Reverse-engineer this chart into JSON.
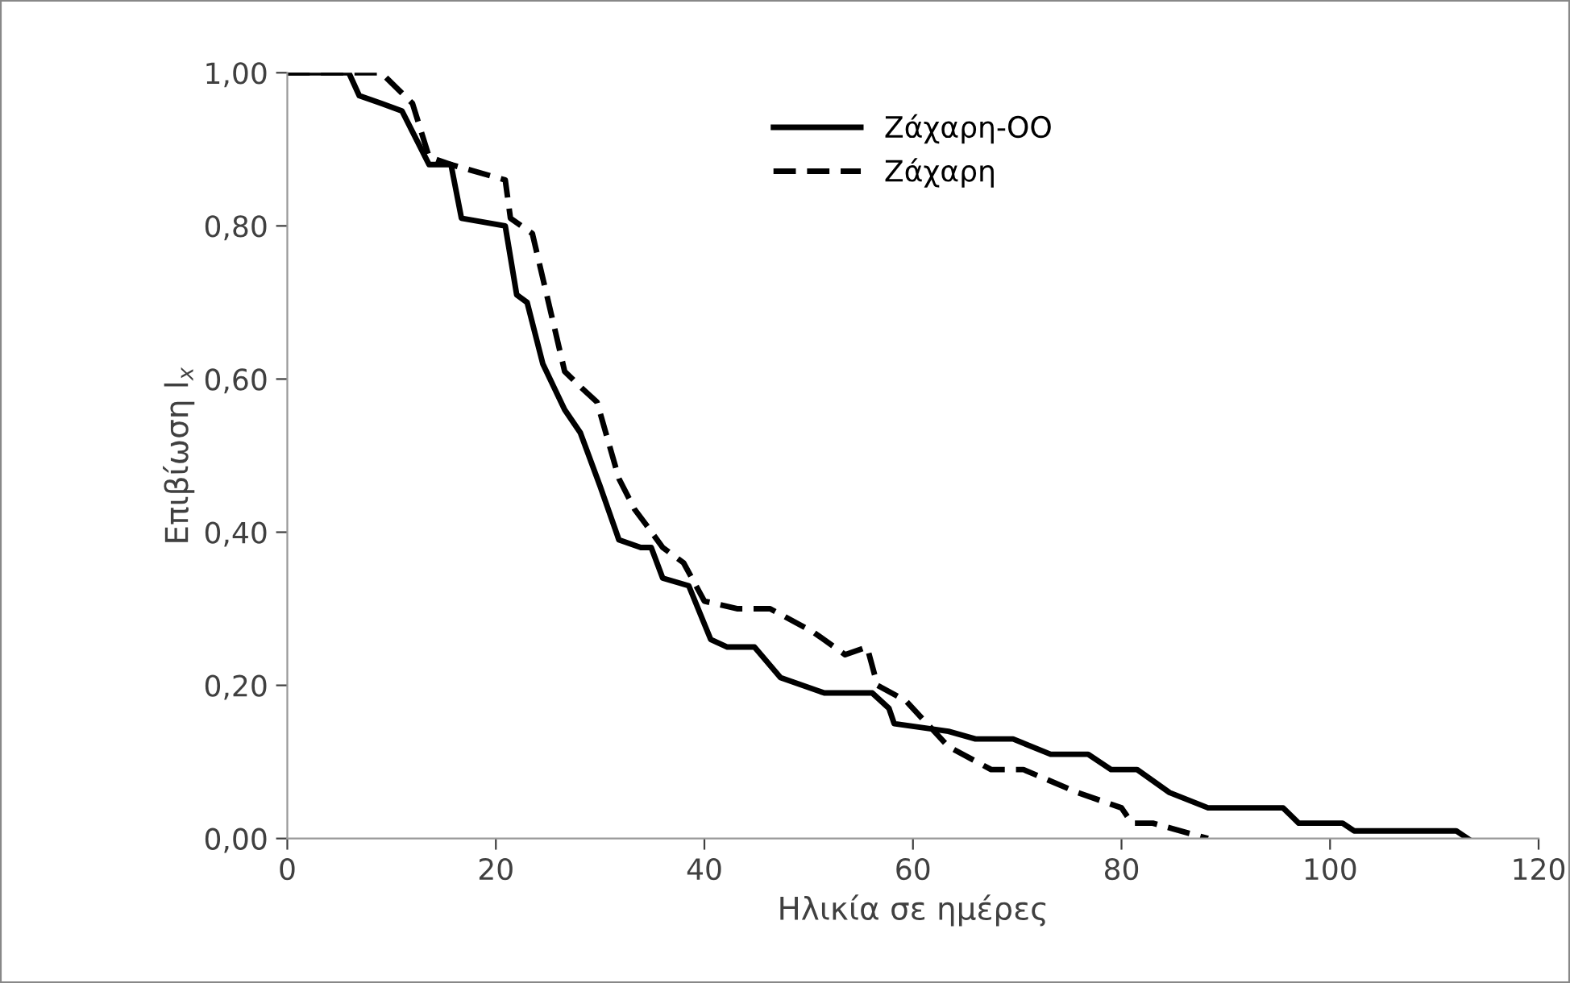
{
  "chart_data": {
    "type": "line",
    "xlabel": "Ηλικία σε ημέρες",
    "ylabel": "Επιβίωση l$_{x}$",
    "xlim": [
      0,
      120
    ],
    "xticks": [
      0,
      20,
      40,
      60,
      80,
      100,
      120
    ],
    "ylim": [
      0,
      1
    ],
    "yticks": [
      {
        "value": 0,
        "label": "0,00"
      },
      {
        "value": 0.2,
        "label": "0,20"
      },
      {
        "value": 0.4,
        "label": "0,40"
      },
      {
        "value": 0.6,
        "label": "0,60"
      },
      {
        "value": 0.8,
        "label": "0,80"
      },
      {
        "value": 1,
        "label": "1,00"
      }
    ],
    "grid": false,
    "legend": "top",
    "marker": "none",
    "series": [
      {
        "name": "Ζάχαρη-ΟΟ",
        "color": "#000000",
        "line_style": "solid",
        "x": [
          0,
          5.9,
          6.9,
          9,
          11,
          13.6,
          15.7,
          16.7,
          20.9,
          22,
          23,
          24.5,
          26.6,
          28.1,
          30,
          31.8,
          33.9,
          34.9,
          36,
          38.5,
          40.6,
          42.2,
          44.8,
          47.3,
          51.5,
          56.1,
          57.7,
          58.2,
          63.4,
          66,
          69.6,
          73.2,
          76.8,
          79,
          81.5,
          84.6,
          88.3,
          95.5,
          97,
          101.2,
          102.3,
          112.1,
          113.2
        ],
        "values": [
          1,
          1,
          0.97,
          0.96,
          0.95,
          0.88,
          0.88,
          0.81,
          0.8,
          0.71,
          0.7,
          0.62,
          0.56,
          0.53,
          0.46,
          0.39,
          0.38,
          0.38,
          0.34,
          0.33,
          0.26,
          0.25,
          0.25,
          0.21,
          0.19,
          0.19,
          0.17,
          0.15,
          0.14,
          0.13,
          0.13,
          0.11,
          0.11,
          0.09,
          0.09,
          0.06,
          0.04,
          0.04,
          0.02,
          0.02,
          0.01,
          0.01,
          0
        ]
      },
      {
        "name": "Ζάχαρη",
        "color": "#000000",
        "line_style": "dashed",
        "x": [
          0,
          9,
          12,
          13.6,
          15.7,
          20.9,
          21.4,
          23.5,
          26.6,
          28.1,
          29.7,
          31.8,
          33.3,
          34.4,
          36,
          38,
          40,
          43.2,
          46.3,
          50.4,
          53.5,
          55.6,
          56.6,
          59.3,
          63.4,
          67.5,
          70.6,
          75.8,
          80,
          81,
          83,
          88.3
        ],
        "values": [
          1,
          1,
          0.96,
          0.89,
          0.88,
          0.86,
          0.81,
          0.79,
          0.61,
          0.59,
          0.57,
          0.47,
          0.43,
          0.41,
          0.38,
          0.36,
          0.31,
          0.3,
          0.3,
          0.27,
          0.24,
          0.25,
          0.2,
          0.18,
          0.12,
          0.09,
          0.09,
          0.06,
          0.04,
          0.02,
          0.02,
          0
        ]
      }
    ]
  }
}
